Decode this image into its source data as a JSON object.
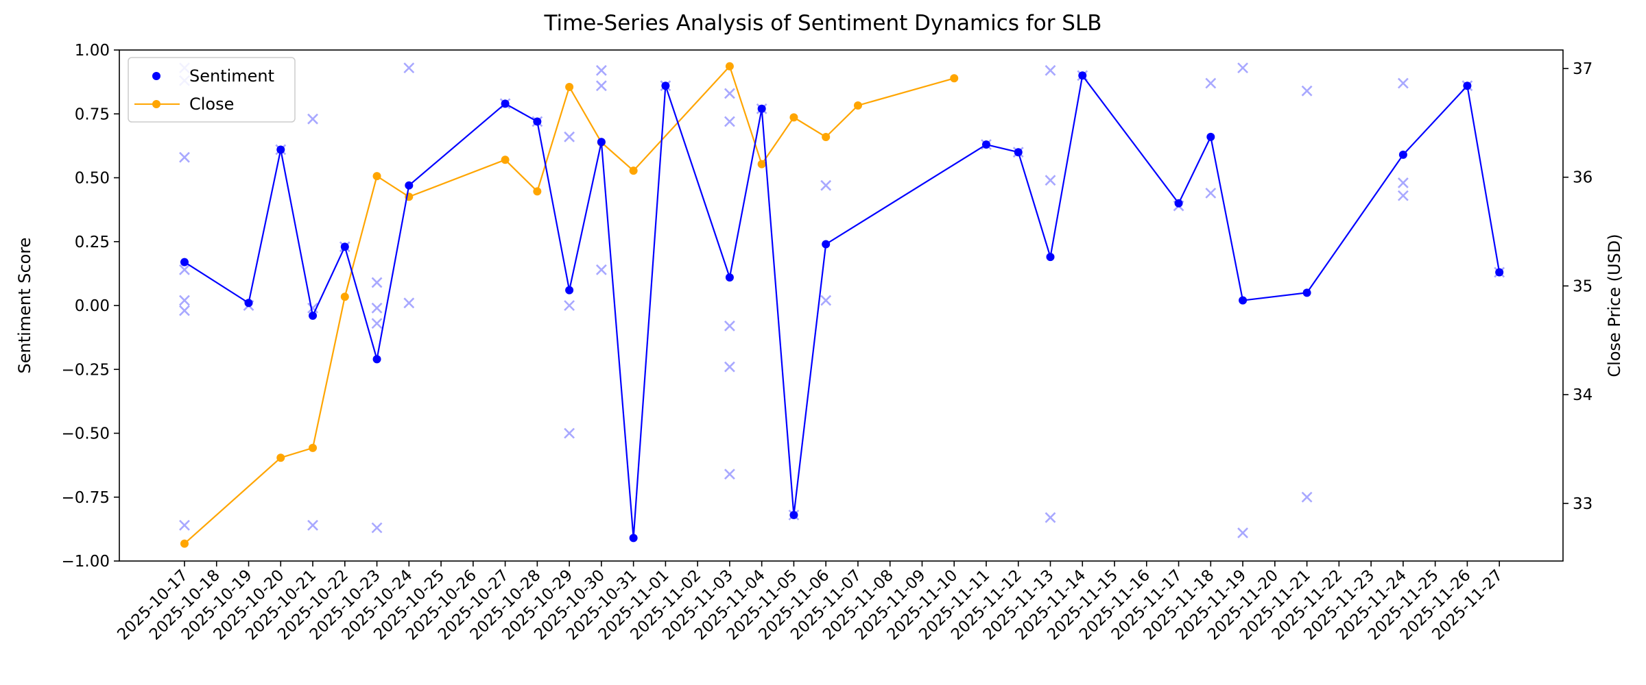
{
  "chart_data": {
    "type": "line",
    "title": "Time-Series Analysis of Sentiment Dynamics for SLB",
    "ylabel": "Sentiment Score",
    "y2label": "Close Price (USD)",
    "xlabel": "",
    "ylim": [
      -1.0,
      1.0
    ],
    "y2lim": [
      32.47,
      37.17
    ],
    "yticks": [
      "−1.00",
      "−0.75",
      "−0.50",
      "−0.25",
      "0.00",
      "0.25",
      "0.50",
      "0.75",
      "1.00"
    ],
    "y2ticks": [
      "33",
      "34",
      "35",
      "36",
      "37"
    ],
    "grid": false,
    "legend": {
      "placement": "top-left",
      "entries": [
        "Sentiment",
        "Close"
      ]
    },
    "colors": {
      "sentiment": "#0000ff",
      "close": "#ffa500",
      "scatter": "#9999ff"
    },
    "categories": [
      "2025-10-17",
      "2025-10-18",
      "2025-10-19",
      "2025-10-20",
      "2025-10-21",
      "2025-10-22",
      "2025-10-23",
      "2025-10-24",
      "2025-10-25",
      "2025-10-26",
      "2025-10-27",
      "2025-10-28",
      "2025-10-29",
      "2025-10-30",
      "2025-10-31",
      "2025-11-01",
      "2025-11-02",
      "2025-11-03",
      "2025-11-04",
      "2025-11-05",
      "2025-11-06",
      "2025-11-07",
      "2025-11-08",
      "2025-11-09",
      "2025-11-10",
      "2025-11-11",
      "2025-11-12",
      "2025-11-13",
      "2025-11-14",
      "2025-11-15",
      "2025-11-16",
      "2025-11-17",
      "2025-11-18",
      "2025-11-19",
      "2025-11-20",
      "2025-11-21",
      "2025-11-22",
      "2025-11-23",
      "2025-11-24",
      "2025-11-25",
      "2025-11-26",
      "2025-11-27"
    ],
    "series": [
      {
        "name": "Sentiment",
        "axis": "left",
        "points": [
          [
            "2025-10-17",
            0.17
          ],
          [
            "2025-10-19",
            0.01
          ],
          [
            "2025-10-20",
            0.61
          ],
          [
            "2025-10-21",
            -0.04
          ],
          [
            "2025-10-22",
            0.23
          ],
          [
            "2025-10-23",
            -0.21
          ],
          [
            "2025-10-24",
            0.47
          ],
          [
            "2025-10-27",
            0.79
          ],
          [
            "2025-10-28",
            0.72
          ],
          [
            "2025-10-29",
            0.06
          ],
          [
            "2025-10-30",
            0.64
          ],
          [
            "2025-10-31",
            -0.91
          ],
          [
            "2025-11-01",
            0.86
          ],
          [
            "2025-11-03",
            0.11
          ],
          [
            "2025-11-04",
            0.77
          ],
          [
            "2025-11-05",
            -0.82
          ],
          [
            "2025-11-06",
            0.24
          ],
          [
            "2025-11-11",
            0.63
          ],
          [
            "2025-11-12",
            0.6
          ],
          [
            "2025-11-13",
            0.19
          ],
          [
            "2025-11-14",
            0.9
          ],
          [
            "2025-11-17",
            0.4
          ],
          [
            "2025-11-18",
            0.66
          ],
          [
            "2025-11-19",
            0.02
          ],
          [
            "2025-11-21",
            0.05
          ],
          [
            "2025-11-24",
            0.59
          ],
          [
            "2025-11-26",
            0.86
          ],
          [
            "2025-11-27",
            0.13
          ]
        ]
      },
      {
        "name": "Close",
        "axis": "right",
        "points": [
          [
            "2025-10-17",
            32.63
          ],
          [
            "2025-10-20",
            33.42
          ],
          [
            "2025-10-21",
            33.51
          ],
          [
            "2025-10-22",
            34.9
          ],
          [
            "2025-10-23",
            36.01
          ],
          [
            "2025-10-24",
            35.82
          ],
          [
            "2025-10-27",
            36.16
          ],
          [
            "2025-10-28",
            35.87
          ],
          [
            "2025-10-29",
            36.83
          ],
          [
            "2025-10-30",
            36.32
          ],
          [
            "2025-10-31",
            36.06
          ],
          [
            "2025-11-03",
            37.02
          ],
          [
            "2025-11-04",
            36.12
          ],
          [
            "2025-11-05",
            36.55
          ],
          [
            "2025-11-06",
            36.37
          ],
          [
            "2025-11-07",
            36.66
          ],
          [
            "2025-11-10",
            36.91
          ]
        ]
      }
    ],
    "scatter": [
      [
        "2025-10-17",
        0.93
      ],
      [
        "2025-10-17",
        0.88
      ],
      [
        "2025-10-17",
        0.58
      ],
      [
        "2025-10-17",
        0.14
      ],
      [
        "2025-10-17",
        0.02
      ],
      [
        "2025-10-17",
        -0.02
      ],
      [
        "2025-10-17",
        -0.86
      ],
      [
        "2025-10-19",
        0.0
      ],
      [
        "2025-10-20",
        0.61
      ],
      [
        "2025-10-21",
        0.73
      ],
      [
        "2025-10-21",
        -0.01
      ],
      [
        "2025-10-21",
        -0.86
      ],
      [
        "2025-10-22",
        0.23
      ],
      [
        "2025-10-23",
        0.09
      ],
      [
        "2025-10-23",
        -0.01
      ],
      [
        "2025-10-23",
        -0.07
      ],
      [
        "2025-10-23",
        -0.87
      ],
      [
        "2025-10-24",
        0.93
      ],
      [
        "2025-10-24",
        0.01
      ],
      [
        "2025-10-27",
        0.79
      ],
      [
        "2025-10-28",
        0.72
      ],
      [
        "2025-10-29",
        0.66
      ],
      [
        "2025-10-29",
        0.0
      ],
      [
        "2025-10-29",
        -0.5
      ],
      [
        "2025-10-30",
        0.92
      ],
      [
        "2025-10-30",
        0.86
      ],
      [
        "2025-10-30",
        0.14
      ],
      [
        "2025-11-01",
        0.86
      ],
      [
        "2025-11-03",
        0.83
      ],
      [
        "2025-11-03",
        0.72
      ],
      [
        "2025-11-03",
        -0.08
      ],
      [
        "2025-11-03",
        -0.24
      ],
      [
        "2025-11-03",
        -0.66
      ],
      [
        "2025-11-04",
        0.77
      ],
      [
        "2025-11-05",
        -0.82
      ],
      [
        "2025-11-06",
        0.47
      ],
      [
        "2025-11-06",
        0.02
      ],
      [
        "2025-11-11",
        0.63
      ],
      [
        "2025-11-12",
        0.6
      ],
      [
        "2025-11-13",
        0.92
      ],
      [
        "2025-11-13",
        0.49
      ],
      [
        "2025-11-13",
        -0.83
      ],
      [
        "2025-11-14",
        0.9
      ],
      [
        "2025-11-17",
        0.39
      ],
      [
        "2025-11-18",
        0.87
      ],
      [
        "2025-11-18",
        0.44
      ],
      [
        "2025-11-19",
        0.93
      ],
      [
        "2025-11-19",
        -0.89
      ],
      [
        "2025-11-21",
        0.84
      ],
      [
        "2025-11-21",
        -0.75
      ],
      [
        "2025-11-24",
        0.87
      ],
      [
        "2025-11-24",
        0.48
      ],
      [
        "2025-11-24",
        0.43
      ],
      [
        "2025-11-26",
        0.86
      ],
      [
        "2025-11-27",
        0.13
      ]
    ]
  }
}
